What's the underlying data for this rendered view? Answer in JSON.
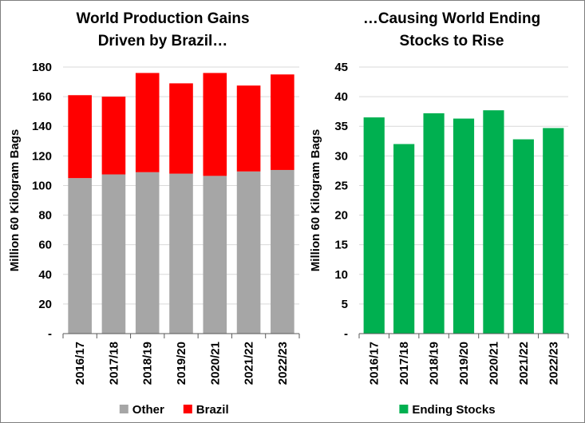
{
  "chart_data": [
    {
      "type": "bar",
      "stacked": true,
      "title_lines": [
        "World Production Gains",
        "Driven by Brazil…"
      ],
      "ylabel": "Million 60 Kilogram Bags",
      "ylim": [
        0,
        180
      ],
      "yticks": [
        0,
        20,
        40,
        60,
        80,
        100,
        120,
        140,
        160,
        180
      ],
      "ytick_labels": [
        "-",
        "20",
        "40",
        "60",
        "80",
        "100",
        "120",
        "140",
        "160",
        "180"
      ],
      "categories": [
        "2016/17",
        "2017/18",
        "2018/19",
        "2019/20",
        "2020/21",
        "2021/22",
        "2022/23"
      ],
      "series": [
        {
          "name": "Other",
          "color": "#a6a6a6",
          "values": [
            105,
            107.5,
            109,
            108,
            106.5,
            109.5,
            110.5
          ]
        },
        {
          "name": "Brazil",
          "color": "#ff0000",
          "values": [
            56,
            52.5,
            67,
            61,
            69.5,
            58,
            64.5
          ]
        }
      ],
      "grid": "horizontal",
      "legend_position": "bottom"
    },
    {
      "type": "bar",
      "title_lines": [
        "…Causing World Ending",
        "Stocks to Rise"
      ],
      "ylabel": "Million 60 Kilogram Bags",
      "ylim": [
        0,
        45
      ],
      "yticks": [
        0,
        5,
        10,
        15,
        20,
        25,
        30,
        35,
        40,
        45
      ],
      "ytick_labels": [
        "-",
        "5",
        "10",
        "15",
        "20",
        "25",
        "30",
        "35",
        "40",
        "45"
      ],
      "categories": [
        "2016/17",
        "2017/18",
        "2018/19",
        "2019/20",
        "2020/21",
        "2021/22",
        "2022/23"
      ],
      "series": [
        {
          "name": "Ending Stocks",
          "color": "#00b050",
          "values": [
            36.5,
            32,
            37.2,
            36.3,
            37.7,
            32.8,
            34.7
          ]
        }
      ],
      "grid": "horizontal",
      "legend_position": "bottom"
    }
  ]
}
